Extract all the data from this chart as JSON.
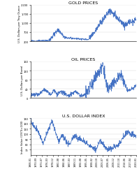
{
  "title_gold": "GOLD PRICES",
  "title_oil": "OIL PRICES",
  "title_usd": "U.S. DOLLAR INDEX",
  "ylabel_gold": "U.S. Dollars per Troy Ounce",
  "ylabel_oil": "U.S. Dollars per Barrel",
  "ylabel_usd": "Index Value (1973=100)",
  "line_color": "#4472C4",
  "line_width": 0.5,
  "bg_color": "#ffffff",
  "title_fontsize": 4.5,
  "label_fontsize": 2.8,
  "tick_fontsize": 2.6,
  "x_tick_fontsize": 2.4,
  "gold_ylim": [
    200,
    2200
  ],
  "gold_yticks": [
    200,
    700,
    1200,
    1700,
    2200
  ],
  "oil_ylim": [
    0,
    160
  ],
  "oil_yticks": [
    0,
    40,
    80,
    120,
    160
  ],
  "usd_ylim": [
    60,
    130
  ],
  "usd_yticks": [
    70,
    80,
    90,
    100,
    110,
    120,
    130
  ],
  "n_points": 620
}
